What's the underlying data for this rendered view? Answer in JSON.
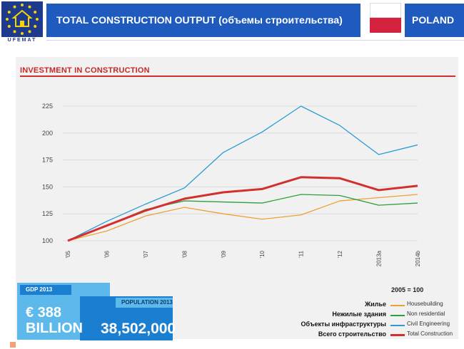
{
  "header": {
    "logo_text": "UFEMAT",
    "title": "TOTAL CONSTRUCTION OUTPUT (объемы строительства)",
    "country": "POLAND",
    "flag_colors": [
      "#ffffff",
      "#d4213d"
    ]
  },
  "chart_title": "INVESTMENT IN CONSTRUCTION",
  "chart_data": {
    "type": "line",
    "title": "INVESTMENT IN CONSTRUCTION",
    "x": [
      "'05",
      "'06",
      "'07",
      "'08",
      "'09",
      "'10",
      "'11",
      "'12",
      "2013a",
      "2014b"
    ],
    "ylim": [
      100,
      225
    ],
    "yticks": [
      100,
      125,
      150,
      175,
      200,
      225
    ],
    "grid": "horizontal",
    "series": [
      {
        "name": "Housebuilding",
        "color": "#f0a030",
        "width": 1.3,
        "values": [
          100,
          109,
          123,
          131,
          125,
          120,
          124,
          137,
          140,
          143
        ]
      },
      {
        "name": "Non residential",
        "color": "#2e9e3e",
        "width": 1.3,
        "values": [
          100,
          114,
          129,
          137,
          136,
          135,
          143,
          142,
          133,
          135
        ]
      },
      {
        "name": "Civil Engineering",
        "color": "#2b9bd6",
        "width": 1.3,
        "values": [
          100,
          118,
          134,
          149,
          182,
          201,
          225,
          207,
          180,
          189
        ]
      },
      {
        "name": "Total Construction",
        "color": "#d32f2f",
        "width": 3,
        "values": [
          100,
          114,
          128,
          139,
          145,
          148,
          159,
          158,
          147,
          151
        ]
      }
    ]
  },
  "base_note": "2005 = 100",
  "legend": [
    {
      "ru": "Жилье",
      "en": "Housebuilding",
      "color": "#f0a030"
    },
    {
      "ru": "Нежилые здания",
      "en": "Non residential",
      "color": "#2e9e3e"
    },
    {
      "ru": "Объекты инфраструктуры",
      "en": "Civil Engineering",
      "color": "#2b9bd6"
    },
    {
      "ru": "Всего строительство",
      "en": "Total Construction",
      "color": "#d32f2f"
    }
  ],
  "info": {
    "gdp_label": "GDP 2013",
    "gdp_value_line1": "€ 388",
    "gdp_value_line2": "BILLION",
    "population_label": "POPULATION 2013",
    "population_value": "38,502,000"
  }
}
